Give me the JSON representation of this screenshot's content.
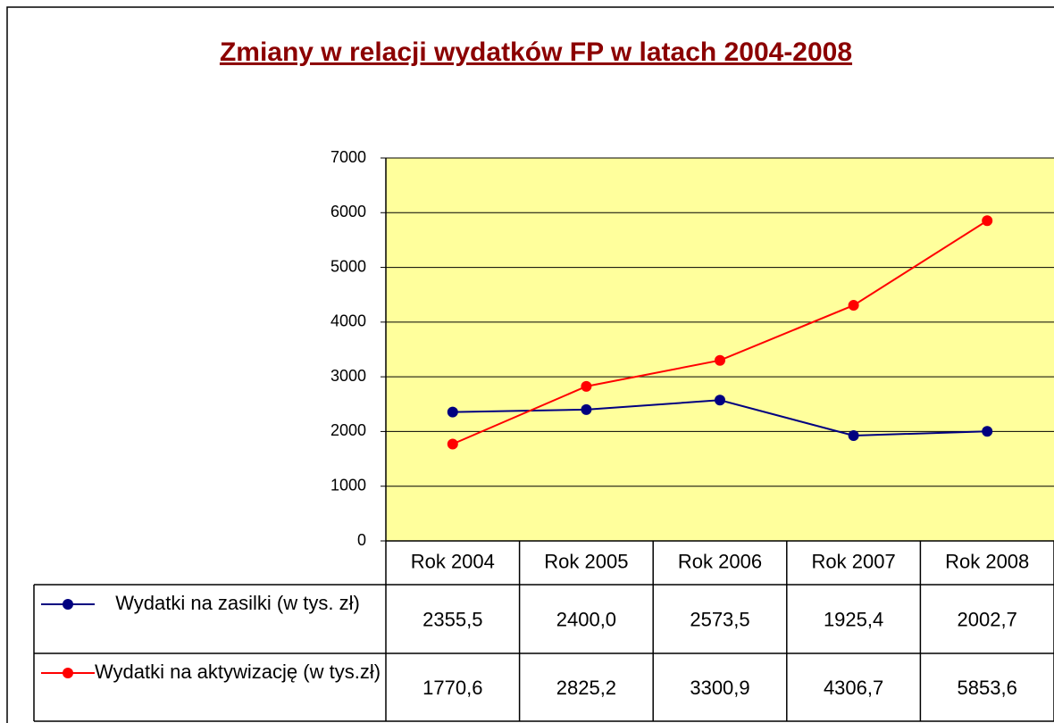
{
  "chart_data": {
    "type": "line",
    "title": "Zmiany w relacji wydatków FP w latach 2004-2008",
    "categories": [
      "Rok 2004",
      "Rok 2005",
      "Rok 2006",
      "Rok 2007",
      "Rok 2008"
    ],
    "series": [
      {
        "name": "Wydatki na zasilki (w tys. zł)",
        "color": "#000080",
        "values": [
          2355.5,
          2400.0,
          2573.5,
          1925.4,
          2002.7
        ],
        "value_labels": [
          "2355,5",
          "2400,0",
          "2573,5",
          "1925,4",
          "2002,7"
        ]
      },
      {
        "name": "Wydatki na aktywizację (w tys.zł)",
        "color": "#ff0000",
        "values": [
          1770.6,
          2825.2,
          3300.9,
          4306.7,
          5853.6
        ],
        "value_labels": [
          "1770,6",
          "2825,2",
          "3300,9",
          "4306,7",
          "5853,6"
        ]
      }
    ],
    "ylim": [
      0,
      7000
    ],
    "yticks": [
      0,
      1000,
      2000,
      3000,
      4000,
      5000,
      6000,
      7000
    ],
    "grid": true,
    "plot_background": "#ffff9c",
    "data_table": true
  }
}
